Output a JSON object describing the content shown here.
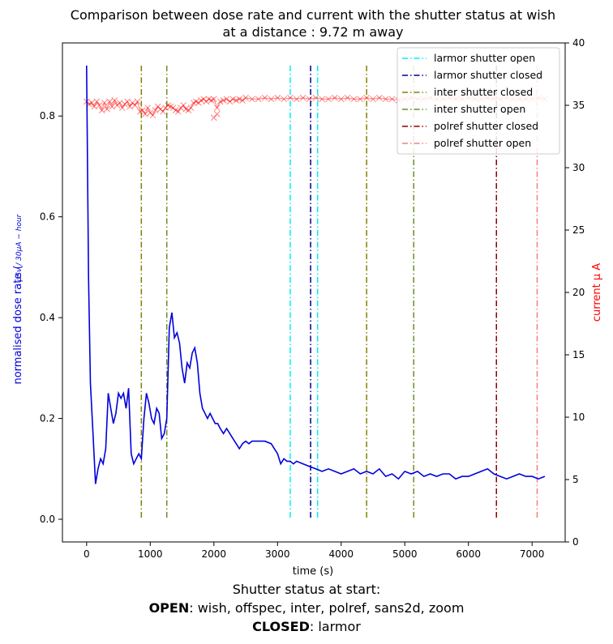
{
  "chart_data": {
    "type": "line",
    "title_line1": "Comparison between dose rate and current with the shutter status at wish",
    "title_line2": "at a distance : 9.72 m away",
    "xlabel": "time (s)",
    "ylabel_left": "normalised dose rate (",
    "ylabel_left_math": "μSv / 30μA − hour",
    "ylabel_right": "current μ A",
    "xlim": [
      -380,
      7520
    ],
    "ylim_left": [
      -0.045,
      0.945
    ],
    "ylim_right": [
      0,
      40
    ],
    "x_ticks": [
      0,
      1000,
      2000,
      3000,
      4000,
      5000,
      6000,
      7000
    ],
    "y_left_ticks": [
      "0.0",
      "0.2",
      "0.4",
      "0.6",
      "0.8"
    ],
    "y_left_tick_values": [
      0.0,
      0.2,
      0.4,
      0.6,
      0.8
    ],
    "y_right_ticks": [
      0,
      5,
      10,
      15,
      20,
      25,
      30,
      35,
      40
    ],
    "colors": {
      "dose": "#0000dd",
      "current": "#ff0000",
      "larmor_open": "#00eeee",
      "larmor_closed": "#00008b",
      "inter_closed": "#808000",
      "inter_open": "#6b8e23",
      "polref_closed": "#8b0000",
      "polref_open": "#f08080"
    },
    "dose_series": {
      "name": "dose rate",
      "x": [
        0,
        30,
        60,
        100,
        140,
        180,
        220,
        260,
        300,
        340,
        380,
        420,
        460,
        500,
        540,
        580,
        620,
        660,
        700,
        740,
        780,
        820,
        860,
        900,
        940,
        980,
        1020,
        1060,
        1100,
        1140,
        1180,
        1220,
        1260,
        1300,
        1340,
        1380,
        1420,
        1460,
        1500,
        1540,
        1580,
        1620,
        1660,
        1700,
        1740,
        1780,
        1820,
        1860,
        1900,
        1940,
        1980,
        2020,
        2060,
        2100,
        2150,
        2200,
        2250,
        2300,
        2350,
        2400,
        2450,
        2500,
        2550,
        2600,
        2700,
        2800,
        2900,
        3000,
        3050,
        3100,
        3150,
        3200,
        3250,
        3300,
        3400,
        3500,
        3600,
        3700,
        3800,
        3900,
        4000,
        4100,
        4200,
        4300,
        4400,
        4500,
        4600,
        4700,
        4800,
        4900,
        5000,
        5100,
        5200,
        5300,
        5400,
        5500,
        5600,
        5700,
        5800,
        5900,
        6000,
        6100,
        6200,
        6300,
        6400,
        6500,
        6600,
        6700,
        6800,
        6900,
        7000,
        7100,
        7200
      ],
      "values": [
        0.9,
        0.48,
        0.27,
        0.17,
        0.07,
        0.1,
        0.12,
        0.11,
        0.14,
        0.25,
        0.22,
        0.19,
        0.21,
        0.25,
        0.24,
        0.25,
        0.22,
        0.26,
        0.13,
        0.11,
        0.12,
        0.13,
        0.12,
        0.2,
        0.25,
        0.23,
        0.2,
        0.19,
        0.22,
        0.21,
        0.16,
        0.17,
        0.2,
        0.38,
        0.41,
        0.36,
        0.37,
        0.35,
        0.3,
        0.27,
        0.31,
        0.3,
        0.33,
        0.34,
        0.31,
        0.25,
        0.22,
        0.21,
        0.2,
        0.21,
        0.2,
        0.19,
        0.19,
        0.18,
        0.17,
        0.18,
        0.17,
        0.16,
        0.15,
        0.14,
        0.15,
        0.155,
        0.15,
        0.155,
        0.155,
        0.155,
        0.15,
        0.13,
        0.11,
        0.12,
        0.115,
        0.115,
        0.11,
        0.115,
        0.11,
        0.105,
        0.1,
        0.095,
        0.1,
        0.095,
        0.09,
        0.095,
        0.1,
        0.09,
        0.095,
        0.09,
        0.1,
        0.085,
        0.09,
        0.08,
        0.095,
        0.09,
        0.095,
        0.085,
        0.09,
        0.085,
        0.09,
        0.09,
        0.08,
        0.085,
        0.085,
        0.09,
        0.095,
        0.1,
        0.09,
        0.085,
        0.08,
        0.085,
        0.09,
        0.085,
        0.085,
        0.08,
        0.085
      ]
    },
    "current_series": {
      "name": "current",
      "x": [
        0,
        40,
        80,
        120,
        160,
        200,
        240,
        280,
        320,
        360,
        400,
        440,
        480,
        520,
        560,
        600,
        640,
        680,
        720,
        760,
        800,
        840,
        880,
        920,
        960,
        1000,
        1040,
        1080,
        1120,
        1160,
        1200,
        1240,
        1280,
        1320,
        1360,
        1400,
        1440,
        1480,
        1520,
        1560,
        1600,
        1640,
        1680,
        1720,
        1760,
        1800,
        1840,
        1880,
        1920,
        1960,
        2000,
        2050,
        2100,
        2150,
        2200,
        2250,
        2300,
        2350,
        2400,
        2450,
        2500,
        2600,
        2700,
        2800,
        2900,
        3000,
        3100,
        3200,
        3300,
        3400,
        3500,
        3600,
        3700,
        3800,
        3900,
        4000,
        4100,
        4200,
        4300,
        4400,
        4500,
        4600,
        4700,
        4800,
        4900,
        5000,
        5100,
        5200,
        5300,
        5400,
        5500,
        5600,
        5700,
        5800,
        5900,
        6000,
        6100,
        6200,
        6300,
        6400,
        6500,
        6600,
        6700,
        6800,
        6900,
        7000,
        7100,
        7200
      ],
      "values": [
        35.3,
        35.1,
        35.2,
        34.9,
        35.3,
        35.0,
        34.6,
        35.2,
        34.7,
        35.3,
        34.9,
        35.4,
        35.0,
        35.2,
        34.8,
        35.1,
        35.3,
        34.9,
        35.2,
        35.0,
        35.3,
        34.5,
        34.6,
        34.3,
        34.8,
        34.4,
        34.2,
        34.6,
        34.9,
        34.7,
        34.5,
        34.8,
        35.0,
        34.9,
        34.8,
        34.6,
        34.5,
        34.8,
        35.0,
        34.7,
        34.6,
        34.8,
        35.2,
        35.3,
        35.2,
        35.4,
        35.5,
        35.3,
        35.5,
        35.4,
        35.5,
        34.8,
        35.3,
        35.4,
        35.5,
        35.3,
        35.5,
        35.4,
        35.5,
        35.4,
        35.6,
        35.5,
        35.5,
        35.6,
        35.5,
        35.6,
        35.5,
        35.6,
        35.5,
        35.6,
        35.5,
        35.6,
        35.5,
        35.5,
        35.6,
        35.5,
        35.6,
        35.5,
        35.5,
        35.6,
        35.5,
        35.6,
        35.5,
        35.5,
        35.4,
        35.5,
        35.6,
        35.5,
        35.5,
        35.6,
        35.5,
        35.5,
        35.6,
        35.5,
        35.5,
        35.6,
        35.5,
        35.5,
        35.6,
        35.5,
        35.5,
        35.6,
        35.5,
        35.5,
        35.5,
        35.5,
        35.6,
        35.5
      ]
    },
    "current_outliers": [
      {
        "x": 2000,
        "value": 34.0
      },
      {
        "x": 2050,
        "value": 34.3
      }
    ],
    "shutter_events": [
      {
        "name": "inter shutter closed",
        "key": "inter_closed",
        "x": 860
      },
      {
        "name": "inter shutter open",
        "key": "inter_open",
        "x": 1260
      },
      {
        "name": "larmor shutter open",
        "key": "larmor_open",
        "x": 3200
      },
      {
        "name": "larmor shutter closed",
        "key": "larmor_closed",
        "x": 3520
      },
      {
        "name": "larmor shutter open",
        "key": "larmor_open",
        "x": 3630
      },
      {
        "name": "inter shutter closed",
        "key": "inter_closed",
        "x": 4400
      },
      {
        "name": "inter shutter open",
        "key": "inter_open",
        "x": 5140
      },
      {
        "name": "polref shutter closed",
        "key": "polref_closed",
        "x": 6440
      },
      {
        "name": "polref shutter open",
        "key": "polref_open",
        "x": 7080
      }
    ],
    "legend": {
      "placement": "top-right",
      "entries": [
        {
          "label": "larmor shutter open",
          "key": "larmor_open"
        },
        {
          "label": "larmor shutter closed",
          "key": "larmor_closed"
        },
        {
          "label": "inter shutter closed",
          "key": "inter_closed"
        },
        {
          "label": "inter shutter open",
          "key": "inter_open"
        },
        {
          "label": "polref shutter closed",
          "key": "polref_closed"
        },
        {
          "label": "polref shutter open",
          "key": "polref_open"
        }
      ]
    }
  },
  "caption": {
    "line1": "Shutter status at start:",
    "open_label": "OPEN",
    "open_list": ":  wish, offspec, inter, polref, sans2d, zoom",
    "closed_label": "CLOSED",
    "closed_list": ":  larmor"
  }
}
